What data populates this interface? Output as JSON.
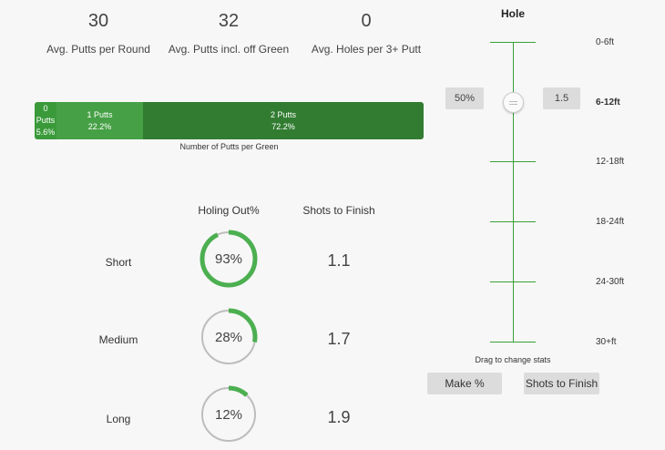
{
  "stats": [
    {
      "value": "30",
      "label": "Avg. Putts per Round"
    },
    {
      "value": "32",
      "label": "Avg. Putts incl. off Green"
    },
    {
      "value": "0",
      "label": "Avg. Holes per 3+ Putt"
    }
  ],
  "putts_bar": {
    "segments": [
      {
        "label_line1": "0",
        "label_line2": "Putts",
        "pct": "5.6%"
      },
      {
        "label": "1 Putts",
        "pct": "22.2%"
      },
      {
        "label": "2 Putts",
        "pct": "72.2%"
      }
    ],
    "caption": "Number of Putts per Green"
  },
  "table": {
    "holing_header": "Holing Out%",
    "shots_header": "Shots to Finish",
    "rows": [
      {
        "label": "Short",
        "holing": "93%",
        "holing_value": 0.93,
        "shots": "1.1"
      },
      {
        "label": "Medium",
        "holing": "28%",
        "holing_value": 0.28,
        "shots": "1.7"
      },
      {
        "label": "Long",
        "holing": "12%",
        "holing_value": 0.12,
        "shots": "1.9"
      }
    ]
  },
  "slider": {
    "title": "Hole",
    "distances": [
      "0-6ft",
      "6-12ft",
      "12-18ft",
      "18-24ft",
      "24-30ft",
      "30+ft"
    ],
    "active_distance": "6-12ft",
    "left_badge": "50%",
    "right_badge": "1.5",
    "caption": "Drag to change stats"
  },
  "buttons": {
    "make_pct": "Make %",
    "shots_to_finish": "Shots to Finish"
  },
  "colors": {
    "accent": "#4caf50",
    "ring_track": "#bdbdbd"
  }
}
